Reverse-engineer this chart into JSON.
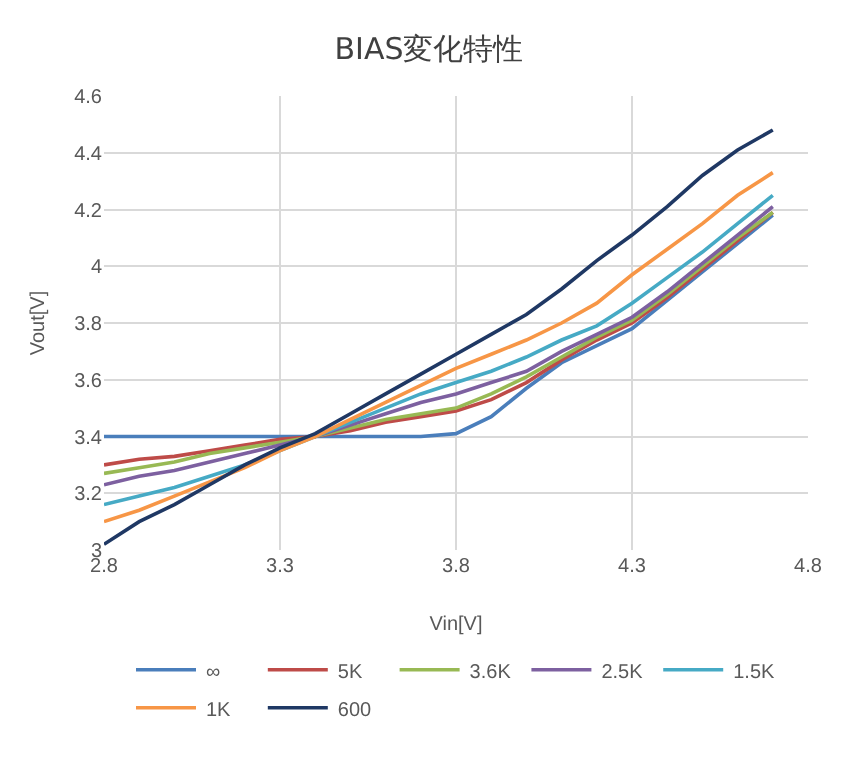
{
  "chart_data": {
    "type": "line",
    "title": "BIAS変化特性",
    "xlabel": "Vin[V]",
    "ylabel": "Vout[V]",
    "x": [
      2.8,
      2.9,
      3.0,
      3.1,
      3.2,
      3.3,
      3.4,
      3.5,
      3.6,
      3.7,
      3.8,
      3.9,
      4.0,
      4.1,
      4.2,
      4.3,
      4.4,
      4.5,
      4.6,
      4.7
    ],
    "series": [
      {
        "name": "∞",
        "color": "#4a7ebb",
        "values": [
          3.4,
          3.4,
          3.4,
          3.4,
          3.4,
          3.4,
          3.4,
          3.4,
          3.4,
          3.4,
          3.41,
          3.47,
          3.57,
          3.66,
          3.72,
          3.78,
          3.88,
          3.98,
          4.08,
          4.18
        ]
      },
      {
        "name": "5K",
        "color": "#be4b48",
        "values": [
          3.3,
          3.32,
          3.33,
          3.35,
          3.37,
          3.39,
          3.4,
          3.42,
          3.45,
          3.47,
          3.49,
          3.53,
          3.59,
          3.67,
          3.74,
          3.8,
          3.89,
          3.99,
          4.09,
          4.19
        ]
      },
      {
        "name": "3.6K",
        "color": "#98b954",
        "values": [
          3.27,
          3.29,
          3.31,
          3.34,
          3.36,
          3.38,
          3.4,
          3.43,
          3.46,
          3.48,
          3.5,
          3.55,
          3.61,
          3.68,
          3.75,
          3.81,
          3.9,
          4.0,
          4.1,
          4.19
        ]
      },
      {
        "name": "2.5K",
        "color": "#7d60a0",
        "values": [
          3.23,
          3.26,
          3.28,
          3.31,
          3.34,
          3.37,
          3.4,
          3.44,
          3.48,
          3.52,
          3.55,
          3.59,
          3.63,
          3.7,
          3.76,
          3.82,
          3.91,
          4.01,
          4.11,
          4.21
        ]
      },
      {
        "name": "1.5K",
        "color": "#46aac5",
        "values": [
          3.16,
          3.19,
          3.22,
          3.26,
          3.3,
          3.35,
          3.4,
          3.45,
          3.5,
          3.55,
          3.59,
          3.63,
          3.68,
          3.74,
          3.79,
          3.87,
          3.96,
          4.05,
          4.15,
          4.25
        ]
      },
      {
        "name": "1K",
        "color": "#f79646",
        "values": [
          3.1,
          3.14,
          3.19,
          3.24,
          3.29,
          3.35,
          3.4,
          3.46,
          3.52,
          3.58,
          3.64,
          3.69,
          3.74,
          3.8,
          3.87,
          3.97,
          4.06,
          4.15,
          4.25,
          4.33
        ]
      },
      {
        "name": "600",
        "color": "#1f3864",
        "values": [
          3.02,
          3.1,
          3.16,
          3.23,
          3.3,
          3.36,
          3.41,
          3.48,
          3.55,
          3.62,
          3.69,
          3.76,
          3.83,
          3.92,
          4.02,
          4.11,
          4.21,
          4.32,
          4.41,
          4.48
        ]
      }
    ],
    "xlim": [
      2.8,
      4.8
    ],
    "xticks": [
      2.8,
      3.3,
      3.8,
      4.3,
      4.8
    ],
    "ylim": [
      3,
      4.6
    ],
    "yticks": [
      3,
      {
        "value": 3.2,
        "label": "3.2"
      },
      3.4,
      3.6,
      3.8,
      4,
      4.2,
      4.4,
      4.6
    ],
    "grid": true,
    "legend": "bottom",
    "marker": "none",
    "line_style": "solid"
  }
}
